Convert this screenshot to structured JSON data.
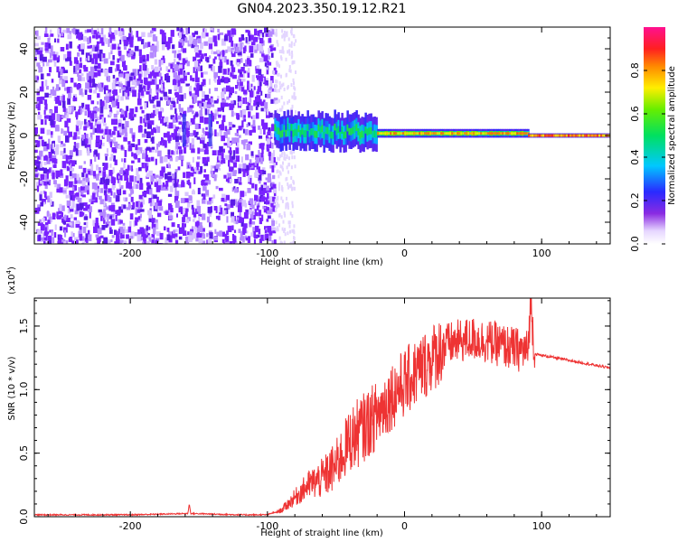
{
  "figure": {
    "title": "GN04.2023.350.19.12.R21"
  },
  "chart_data": [
    {
      "type": "heatmap",
      "title": "GN04.2023.350.19.12.R21",
      "xlabel": "Height of straight line (km)",
      "ylabel": "Frequency (Hz)",
      "xlim": [
        -270,
        150
      ],
      "ylim": [
        -50,
        50
      ],
      "x_ticks": [
        -200,
        -100,
        0,
        100
      ],
      "x_tick_labels": [
        "-200",
        "-100",
        "0",
        "100"
      ],
      "y_ticks": [
        -40,
        -20,
        0,
        20,
        40
      ],
      "y_tick_labels": [
        "-40",
        "-20",
        "0",
        "20",
        "40"
      ],
      "colorbar": {
        "label": "Normalized spectral amplitude",
        "range": [
          0,
          1
        ],
        "ticks": [
          0.0,
          0.2,
          0.4,
          0.6,
          0.8
        ],
        "tick_labels": [
          "0.0",
          "0.2",
          "0.4",
          "0.6",
          "0.8"
        ],
        "colormap": "rainbow (white - violet - blue - cyan - green - yellow - red - magenta)"
      },
      "regions": [
        {
          "x_range": [
            -270,
            -95
          ],
          "description": "broadband low-amplitude noise (amplitude ~0.1-0.2) across all frequencies"
        },
        {
          "x_range": [
            -95,
            -20
          ],
          "freq_center": 2,
          "freq_halfwidth": 8,
          "peak_amplitude": 0.55
        },
        {
          "x_range": [
            -20,
            90
          ],
          "freq_center": 1,
          "freq_halfwidth": 2,
          "peak_amplitude": 0.85
        },
        {
          "x_range": [
            90,
            150
          ],
          "freq_center": 0,
          "freq_halfwidth": 1,
          "peak_amplitude": 0.9
        }
      ],
      "colors": {
        "noise": "#7a22ff",
        "signal_core": "#ff2a2a"
      }
    },
    {
      "type": "line",
      "xlabel": "Height of straight line (km)",
      "ylabel": "SNR (10 * v/v)",
      "y_scale_label": "(x10",
      "y_scale_exponent": "4",
      "y_scale_close": ")",
      "xlim": [
        -270,
        150
      ],
      "ylim": [
        0,
        1.72
      ],
      "x_ticks": [
        -200,
        -100,
        0,
        100
      ],
      "x_tick_labels": [
        "-200",
        "-100",
        "0",
        "100"
      ],
      "y_ticks": [
        0.0,
        0.5,
        1.0,
        1.5
      ],
      "y_tick_labels": [
        "0.0",
        "0.5",
        "1.0",
        "1.5"
      ],
      "series": [
        {
          "color": "#ee3333",
          "x": [
            -270,
            -200,
            -158,
            -157,
            -156,
            -120,
            -100,
            -90,
            -80,
            -70,
            -60,
            -50,
            -40,
            -30,
            -20,
            -10,
            0,
            10,
            20,
            30,
            40,
            50,
            60,
            70,
            80,
            90,
            92,
            95,
            100,
            120,
            150
          ],
          "y": [
            0.01,
            0.01,
            0.02,
            0.1,
            0.02,
            0.01,
            0.01,
            0.05,
            0.15,
            0.25,
            0.3,
            0.4,
            0.6,
            0.7,
            0.8,
            0.95,
            1.05,
            1.15,
            1.25,
            1.35,
            1.38,
            1.4,
            1.38,
            1.35,
            1.32,
            1.3,
            1.7,
            1.28,
            1.27,
            1.23,
            1.17
          ]
        }
      ]
    }
  ]
}
